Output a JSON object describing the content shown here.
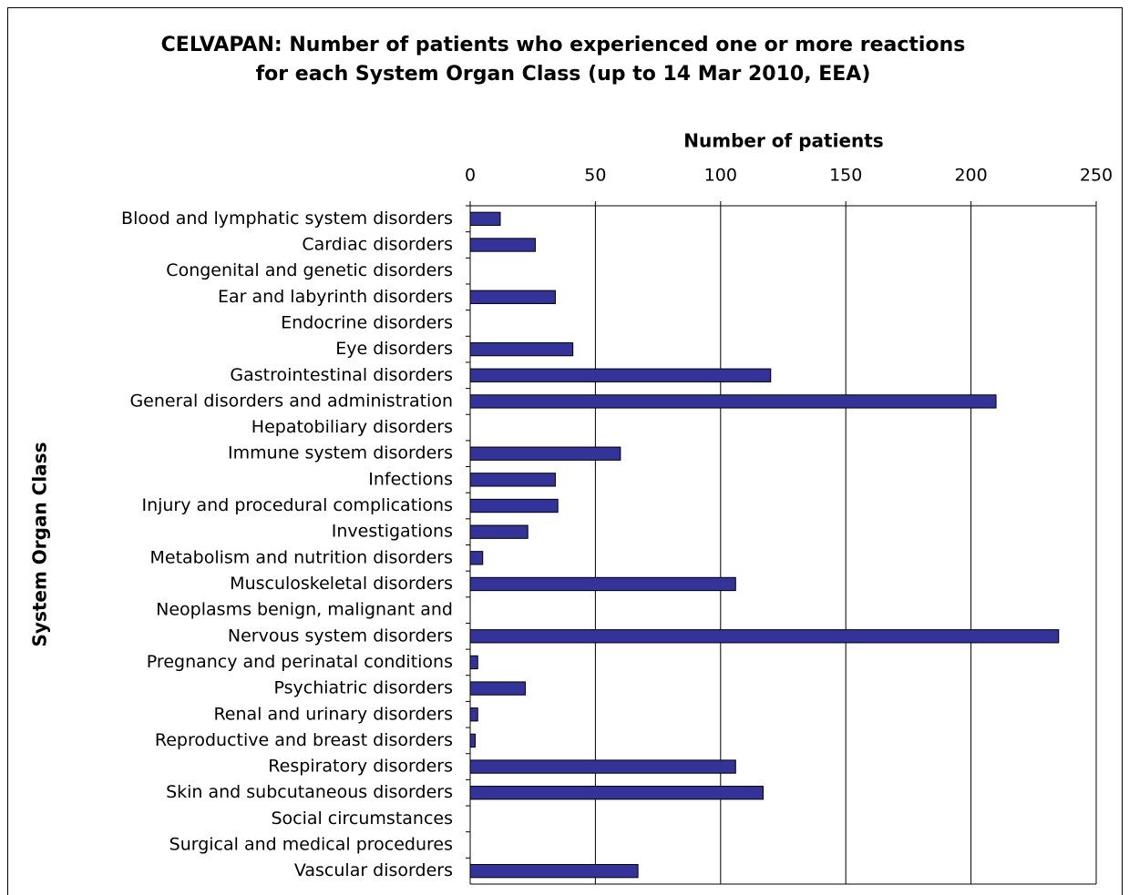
{
  "chart_data": {
    "type": "bar",
    "orientation": "horizontal",
    "title": "CELVAPAN: Number of patients who experienced one or more reactions for each System Organ Class (up to 14 Mar 2010, EEA)",
    "x_label": "Number of patients",
    "y_label": "System Organ Class",
    "categories": [
      "Blood and lymphatic system disorders",
      "Cardiac disorders",
      "Congenital and genetic disorders",
      "Ear and labyrinth disorders",
      "Endocrine disorders",
      "Eye disorders",
      "Gastrointestinal disorders",
      "General disorders and administration",
      "Hepatobiliary disorders",
      "Immune system disorders",
      "Infections",
      "Injury and procedural complications",
      "Investigations",
      "Metabolism and nutrition disorders",
      "Musculoskeletal disorders",
      "Neoplasms benign, malignant and",
      "Nervous system disorders",
      "Pregnancy and perinatal conditions",
      "Psychiatric disorders",
      "Renal and urinary disorders",
      "Reproductive and breast disorders",
      "Respiratory disorders",
      "Skin and subcutaneous disorders",
      "Social circumstances",
      "Surgical and medical procedures",
      "Vascular disorders"
    ],
    "values": [
      12,
      26,
      0,
      34,
      0,
      41,
      120,
      210,
      0,
      60,
      34,
      35,
      23,
      5,
      106,
      0,
      235,
      3,
      22,
      3,
      2,
      106,
      117,
      0,
      0,
      67
    ],
    "color": "#333399",
    "xlim": [
      0,
      250
    ],
    "xticks": [
      0,
      50,
      100,
      150,
      200,
      250
    ],
    "grid": true
  }
}
